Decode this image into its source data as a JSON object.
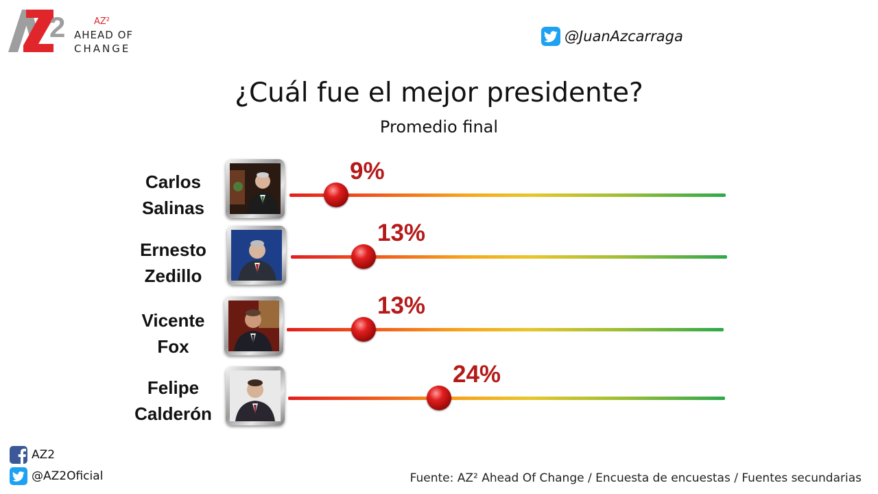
{
  "brand": {
    "mark": "AZ2",
    "sup": "AZ²",
    "line1": "AHEAD OF",
    "line2": "CHANGE"
  },
  "top_handle": {
    "icon": "twitter-icon",
    "text": "@JuanAzcarraga"
  },
  "colors": {
    "accent": "#b51a1a",
    "twitter": "#1da1f2",
    "facebook": "#3b5998",
    "logo_red": "#e1262b",
    "logo_gray": "#9e9e9e"
  },
  "chart_data": {
    "type": "dot-track",
    "title": "¿Cuál fue el mejor presidente?",
    "subtitle": "Promedio final",
    "unit": "%",
    "range": [
      0,
      100
    ],
    "series": [
      {
        "name_line1": "Carlos",
        "name_line2": "Salinas",
        "value": 9,
        "label": "9%"
      },
      {
        "name_line1": "Ernesto",
        "name_line2": "Zedillo",
        "value": 13,
        "label": "13%"
      },
      {
        "name_line1": "Vicente",
        "name_line2": "Fox",
        "value": 13,
        "label": "13%"
      },
      {
        "name_line1": "Felipe",
        "name_line2": "Calderón",
        "value": 24,
        "label": "24%"
      }
    ]
  },
  "footer": {
    "facebook": {
      "icon": "facebook-icon",
      "text": "AZ2"
    },
    "twitter": {
      "icon": "twitter-icon",
      "text": "@AZ2Oficial"
    },
    "source": "Fuente: AZ² Ahead Of Change / Encuesta de encuestas / Fuentes secundarias"
  }
}
